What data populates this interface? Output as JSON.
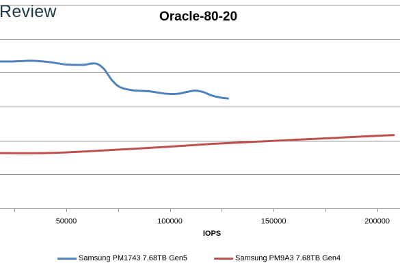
{
  "watermark": "Review",
  "chart_data": {
    "type": "line",
    "title": "Oracle-80-20",
    "xlabel": "IOPS",
    "ylabel": "",
    "xlim": [
      18000,
      211000
    ],
    "ylim": [
      0,
      6
    ],
    "xticks": [
      50000,
      100000,
      150000,
      200000
    ],
    "grid": true,
    "legend_position": "bottom",
    "series": [
      {
        "name": "Samsung PM1743 7.68TB Gen5",
        "color": "#4f81bd",
        "x": [
          18000,
          24000,
          34000,
          42000,
          50000,
          58000,
          64000,
          68000,
          72000,
          76000,
          82000,
          90000,
          98000,
          104000,
          108000,
          112000,
          116000,
          120000,
          124000,
          128000
        ],
        "y": [
          4.33,
          4.33,
          4.35,
          4.31,
          4.24,
          4.23,
          4.27,
          4.12,
          3.78,
          3.57,
          3.48,
          3.45,
          3.38,
          3.38,
          3.43,
          3.47,
          3.43,
          3.33,
          3.27,
          3.24
        ]
      },
      {
        "name": "Samsung PM9A3 7.68TB Gen4",
        "color": "#c0504d",
        "x": [
          18000,
          40000,
          60000,
          80000,
          100000,
          120000,
          140000,
          160000,
          180000,
          200000,
          208000
        ],
        "y": [
          1.63,
          1.63,
          1.68,
          1.75,
          1.82,
          1.9,
          1.96,
          2.02,
          2.08,
          2.14,
          2.16
        ]
      }
    ]
  }
}
